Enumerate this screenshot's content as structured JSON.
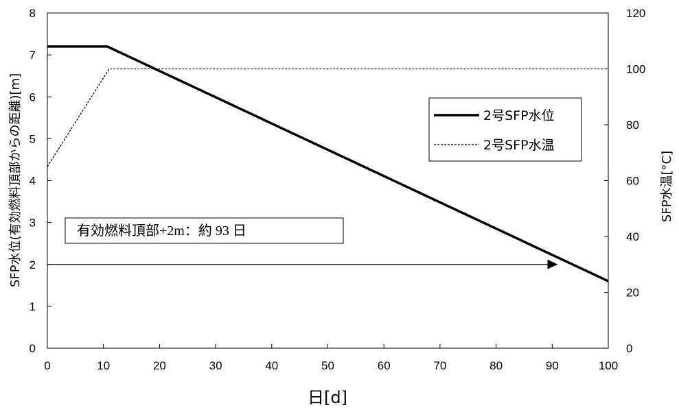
{
  "chart_data": {
    "type": "line",
    "x_axis": {
      "label": "日[d]",
      "range": [
        0,
        100
      ],
      "ticks": [
        0,
        10,
        20,
        30,
        40,
        50,
        60,
        70,
        80,
        90,
        100
      ]
    },
    "y_axis_left": {
      "label": "SFP水位(有効燃料頂部からの距離)[m]",
      "range": [
        0,
        8
      ],
      "ticks": [
        0,
        1,
        2,
        3,
        4,
        5,
        6,
        7,
        8
      ]
    },
    "y_axis_right": {
      "label": "SFP水温[°C]",
      "range": [
        0,
        120
      ],
      "ticks": [
        0,
        20,
        40,
        60,
        80,
        100,
        120
      ]
    },
    "grid": false,
    "legend_position": "right",
    "series": [
      {
        "name": "2号SFP水位",
        "axis": "left",
        "style": "solid",
        "color": "#000000",
        "points": [
          [
            0,
            7.2
          ],
          [
            10.7,
            7.2
          ],
          [
            100,
            1.6
          ]
        ]
      },
      {
        "name": "2号SFP水温",
        "axis": "right",
        "style": "dashed",
        "color": "#000000",
        "points": [
          [
            0,
            65
          ],
          [
            11,
            100
          ],
          [
            100,
            100
          ]
        ]
      }
    ],
    "annotation": {
      "text": "有効燃料頂部+2m：約 93 日",
      "arrow_from": [
        0,
        2
      ],
      "arrow_to": [
        91,
        2
      ]
    }
  }
}
